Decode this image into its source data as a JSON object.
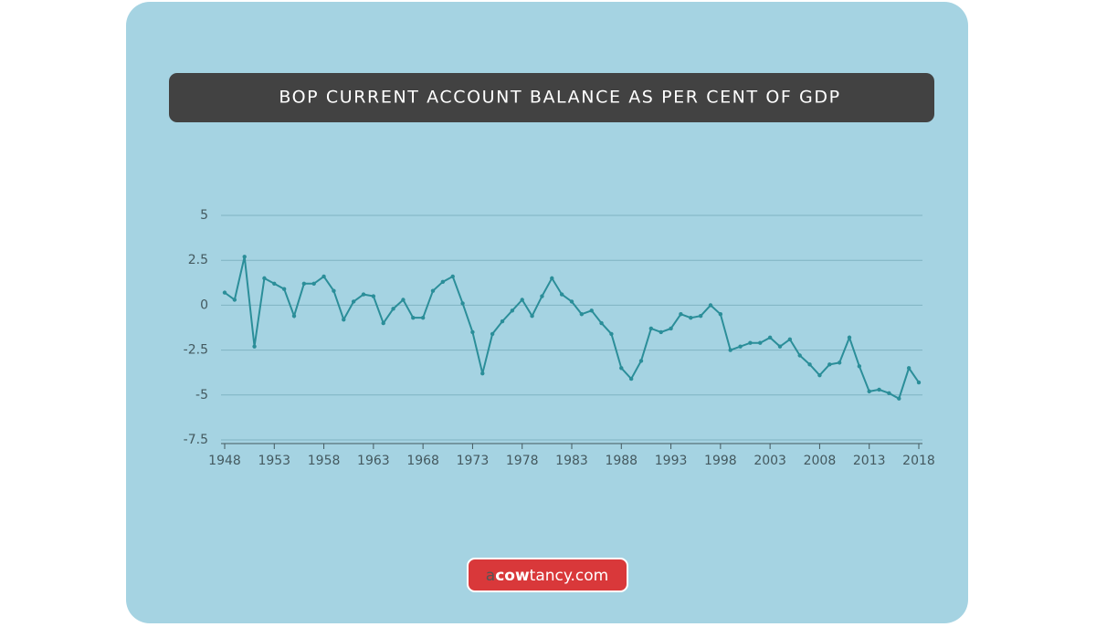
{
  "chart_data": {
    "type": "line",
    "title": "BOP CURRENT ACCOUNT BALANCE AS PER CENT OF GDP",
    "x": [
      1948,
      1949,
      1950,
      1951,
      1952,
      1953,
      1954,
      1955,
      1956,
      1957,
      1958,
      1959,
      1960,
      1961,
      1962,
      1963,
      1964,
      1965,
      1966,
      1967,
      1968,
      1969,
      1970,
      1971,
      1972,
      1973,
      1974,
      1975,
      1976,
      1977,
      1978,
      1979,
      1980,
      1981,
      1982,
      1983,
      1984,
      1985,
      1986,
      1987,
      1988,
      1989,
      1990,
      1991,
      1992,
      1993,
      1994,
      1995,
      1996,
      1997,
      1998,
      1999,
      2000,
      2001,
      2002,
      2003,
      2004,
      2005,
      2006,
      2007,
      2008,
      2009,
      2010,
      2011,
      2012,
      2013,
      2014,
      2015,
      2016,
      2017,
      2018
    ],
    "values": [
      0.7,
      0.3,
      2.7,
      -2.3,
      1.5,
      1.2,
      0.9,
      -0.6,
      1.2,
      1.2,
      1.6,
      0.8,
      -0.8,
      0.2,
      0.6,
      0.5,
      -1.0,
      -0.2,
      0.3,
      -0.7,
      -0.7,
      0.8,
      1.3,
      1.6,
      0.1,
      -1.5,
      -3.8,
      -1.6,
      -0.9,
      -0.3,
      0.3,
      -0.6,
      0.5,
      1.5,
      0.6,
      0.2,
      -0.5,
      -0.3,
      -1.0,
      -1.6,
      -3.5,
      -4.1,
      -3.1,
      -1.3,
      -1.5,
      -1.3,
      -0.5,
      -0.7,
      -0.6,
      0.0,
      -0.5,
      -2.5,
      -2.3,
      -2.1,
      -2.1,
      -1.8,
      -2.3,
      -1.9,
      -2.8,
      -3.3,
      -3.9,
      -3.3,
      -3.2,
      -1.8,
      -3.4,
      -4.8,
      -4.7,
      -4.9,
      -5.2,
      -3.5,
      -4.3
    ],
    "color": "#2b8e99",
    "xlim": [
      1948,
      2018
    ],
    "xticks": [
      1948,
      1953,
      1958,
      1963,
      1968,
      1973,
      1978,
      1983,
      1988,
      1993,
      1998,
      2003,
      2008,
      2013,
      2018
    ],
    "ylim": [
      -7.5,
      5
    ],
    "yticks": [
      5,
      2.5,
      0,
      -2.5,
      -5,
      -7.5
    ],
    "grid": true
  },
  "logo": [
    "a",
    "cow",
    "tancy.com"
  ]
}
